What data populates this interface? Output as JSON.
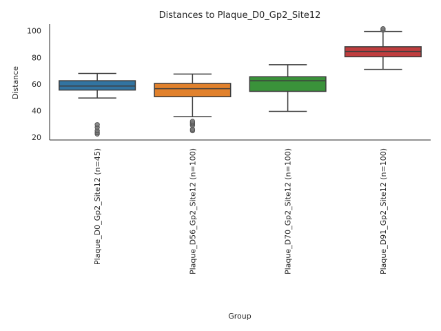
{
  "chart_data": {
    "type": "box",
    "title": "Distances to Plaque_D0_Gp2_Site12",
    "xlabel": "Group",
    "ylabel": "Distance",
    "ylim": [
      18,
      105
    ],
    "yticks": [
      20,
      40,
      60,
      80,
      100
    ],
    "grid": false,
    "legend": "none",
    "categories": [
      "Plaque_D0_Gp2_Site12 (n=45)",
      "Plaque_D56_Gp2_Site12 (n=100)",
      "Plaque_D70_Gp2_Site12 (n=100)",
      "Plaque_D91_Gp2_Site12 (n=100)"
    ],
    "boxes": [
      {
        "color": "#3274a1",
        "whisker_low": 49.5,
        "q1": 55.5,
        "median": 58.5,
        "q3": 62.5,
        "whisker_high": 68,
        "outliers": [
          22.5,
          23.5,
          25,
          27.5,
          29.5
        ]
      },
      {
        "color": "#e1812c",
        "whisker_low": 35.5,
        "q1": 50.5,
        "median": 56.5,
        "q3": 60.5,
        "whisker_high": 67.5,
        "outliers": [
          25,
          26,
          29,
          30,
          31,
          32
        ]
      },
      {
        "color": "#3a923a",
        "whisker_low": 39.5,
        "q1": 54.5,
        "median": 62.5,
        "q3": 65.5,
        "whisker_high": 74.5,
        "outliers": []
      },
      {
        "color": "#c03d3e",
        "whisker_low": 71,
        "q1": 80.5,
        "median": 84.5,
        "q3": 88,
        "whisker_high": 99.5,
        "outliers": [
          100.5,
          101.5
        ]
      }
    ]
  }
}
